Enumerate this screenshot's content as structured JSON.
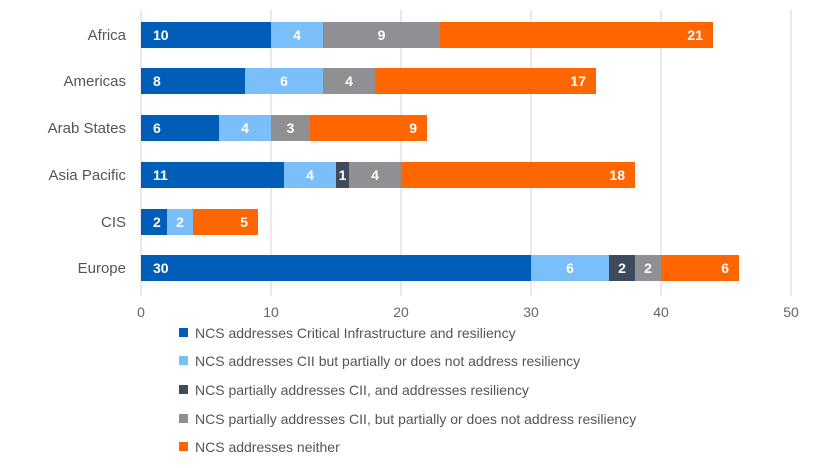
{
  "chart_data": {
    "type": "bar",
    "orientation": "horizontal",
    "stacked": true,
    "title": "",
    "xlabel": "",
    "ylabel": "",
    "xlim": [
      0,
      50
    ],
    "xticks": [
      0,
      10,
      20,
      30,
      40,
      50
    ],
    "grid": true,
    "legend_position": "bottom",
    "categories": [
      "Africa",
      "Americas",
      "Arab States",
      "Asia Pacific",
      "CIS",
      "Europe"
    ],
    "series": [
      {
        "name": "NCS addresses Critical Infrastructure and resiliency",
        "color": "#005EB8",
        "values": [
          10,
          8,
          6,
          11,
          2,
          30
        ]
      },
      {
        "name": "NCS addresses CII but partially or does not address resiliency",
        "color": "#7ABEFA",
        "values": [
          4,
          6,
          4,
          4,
          2,
          6
        ]
      },
      {
        "name": "NCS partially addresses CII, and addresses resiliency",
        "color": "#3F4A5C",
        "values": [
          0,
          0,
          0,
          1,
          0,
          2
        ]
      },
      {
        "name": "NCS partially addresses CII, but partially or does not address resiliency",
        "color": "#909094",
        "values": [
          9,
          4,
          3,
          4,
          0,
          2
        ]
      },
      {
        "name": "NCS addresses neither",
        "color": "#FF6600",
        "values": [
          21,
          17,
          9,
          18,
          5,
          6
        ]
      }
    ]
  }
}
